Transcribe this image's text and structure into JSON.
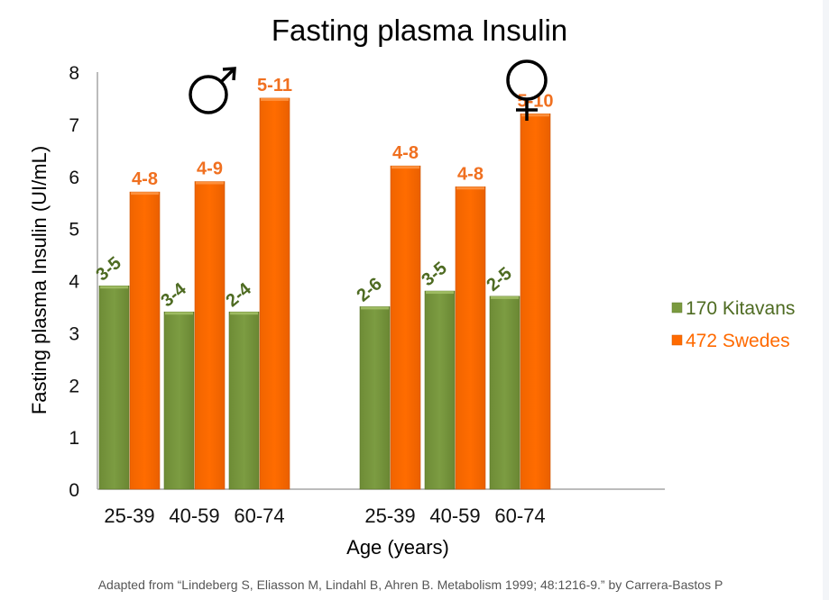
{
  "chart_data": {
    "type": "bar",
    "title": "Fasting plasma Insulin",
    "xlabel": "Age (years)",
    "ylabel": "Fasting plasma Insulin (UI/mL)",
    "ylim": [
      0,
      8
    ],
    "yticks": [
      0,
      1,
      2,
      3,
      4,
      5,
      6,
      7,
      8
    ],
    "grid": false,
    "legend_position": "right",
    "groups": [
      {
        "name": "male",
        "symbol": "♂",
        "symbol_icon": "male-symbol-icon",
        "categories": [
          "25-39",
          "40-59",
          "60-74"
        ]
      },
      {
        "name": "female",
        "symbol": "♀",
        "symbol_icon": "female-symbol-icon",
        "categories": [
          "25-39",
          "40-59",
          "60-74"
        ]
      }
    ],
    "categories": [
      "25-39",
      "40-59",
      "60-74",
      "25-39",
      "40-59",
      "60-74"
    ],
    "series": [
      {
        "name": "170 Kitavans",
        "color": "#7a9a3f",
        "label_color": "#4e6b22",
        "values": [
          3.9,
          3.4,
          3.4,
          3.5,
          3.8,
          3.7
        ],
        "range_labels": [
          "3-5",
          "3-4",
          "2-4",
          "2-6",
          "3-5",
          "2-5"
        ]
      },
      {
        "name": "472 Swedes",
        "color": "#ff6a00",
        "label_color": "#f07020",
        "values": [
          5.7,
          5.9,
          7.5,
          6.2,
          5.8,
          7.2
        ],
        "range_labels": [
          "4-8",
          "4-9",
          "5-11",
          "4-8",
          "4-8",
          "5-10"
        ]
      }
    ],
    "source_note": "Adapted from “Lindeberg S, Eliasson M, Lindahl B, Ahren B. Metabolism 1999; 48:1216-9.” by Carrera-Bastos P"
  }
}
